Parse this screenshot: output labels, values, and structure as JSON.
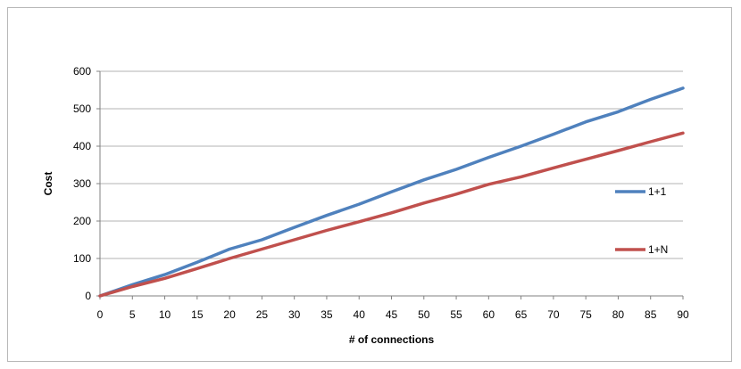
{
  "chart_data": {
    "type": "line",
    "title": "",
    "xlabel": "# of connections",
    "ylabel": "Cost",
    "xlim": [
      0,
      90
    ],
    "ylim": [
      0,
      600
    ],
    "x_ticks": [
      0,
      5,
      10,
      15,
      20,
      25,
      30,
      35,
      40,
      45,
      50,
      55,
      60,
      65,
      70,
      75,
      80,
      85,
      90
    ],
    "y_ticks": [
      0,
      100,
      200,
      300,
      400,
      500,
      600
    ],
    "grid": "horizontal",
    "legend_position": "right",
    "x": [
      0,
      5,
      10,
      15,
      20,
      25,
      30,
      35,
      40,
      45,
      50,
      55,
      60,
      65,
      70,
      75,
      80,
      85,
      90
    ],
    "series": [
      {
        "name": "1+1",
        "color": "#4f81bd",
        "values": [
          0,
          30,
          57,
          90,
          125,
          150,
          183,
          215,
          245,
          278,
          310,
          338,
          370,
          400,
          432,
          465,
          492,
          525,
          555
        ]
      },
      {
        "name": "1+N",
        "color": "#c0504d",
        "values": [
          0,
          25,
          47,
          73,
          100,
          125,
          150,
          175,
          198,
          222,
          248,
          272,
          298,
          318,
          342,
          365,
          388,
          412,
          435
        ]
      }
    ]
  }
}
